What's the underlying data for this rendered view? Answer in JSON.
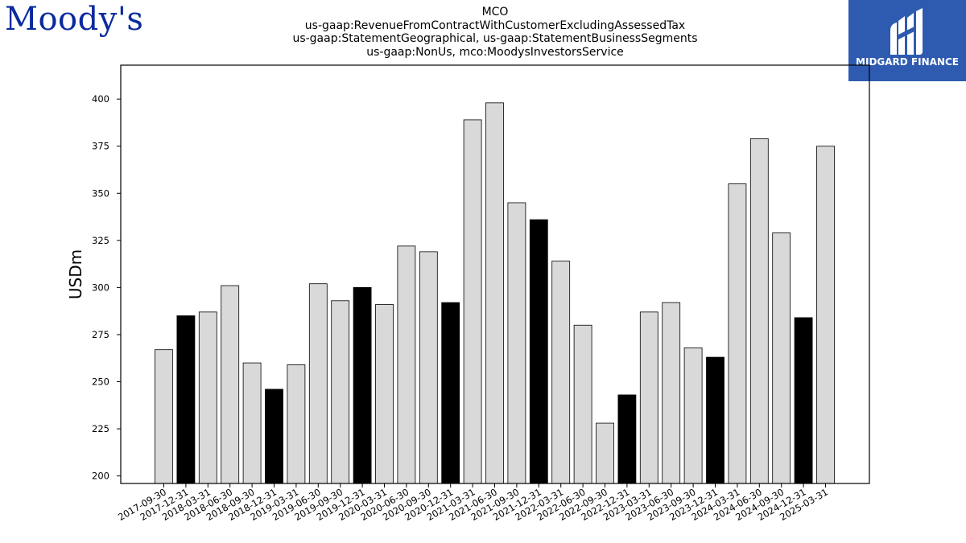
{
  "header": {
    "title_lines": [
      "MCO",
      "us-gaap:RevenueFromContractWithCustomerExcludingAssessedTax",
      "us-gaap:StatementGeographical, us-gaap:StatementBusinessSegments",
      "us-gaap:NonUs, mco:MoodysInvestorsService"
    ]
  },
  "logos": {
    "moodys": "Moody's",
    "midgard": "MIDGARD FINANCE"
  },
  "colors": {
    "bar_light": "#d9d9d9",
    "bar_dark": "#000000",
    "midgard_bg": "#2e5bb0",
    "moodys_blue": "#0a2a9e"
  },
  "chart_data": {
    "type": "bar",
    "ylabel": "USDm",
    "xlabel": "",
    "ylim": [
      196,
      418
    ],
    "yticks": [
      200,
      225,
      250,
      275,
      300,
      325,
      350,
      375,
      400
    ],
    "grid": false,
    "categories": [
      "2017-09-30",
      "2017-12-31",
      "2018-03-31",
      "2018-06-30",
      "2018-09-30",
      "2018-12-31",
      "2019-03-31",
      "2019-06-30",
      "2019-09-30",
      "2019-12-31",
      "2020-03-31",
      "2020-06-30",
      "2020-09-30",
      "2020-12-31",
      "2021-03-31",
      "2021-06-30",
      "2021-09-30",
      "2021-12-31",
      "2022-03-31",
      "2022-06-30",
      "2022-09-30",
      "2022-12-31",
      "2023-03-31",
      "2023-06-30",
      "2023-09-30",
      "2023-12-31",
      "2024-03-31",
      "2024-06-30",
      "2024-09-30",
      "2024-12-31",
      "2025-03-31"
    ],
    "values": [
      267,
      285,
      287,
      301,
      260,
      246,
      259,
      302,
      293,
      300,
      291,
      322,
      319,
      292,
      389,
      398,
      345,
      336,
      314,
      280,
      228,
      243,
      287,
      292,
      268,
      263,
      355,
      379,
      329,
      284,
      375
    ]
  }
}
